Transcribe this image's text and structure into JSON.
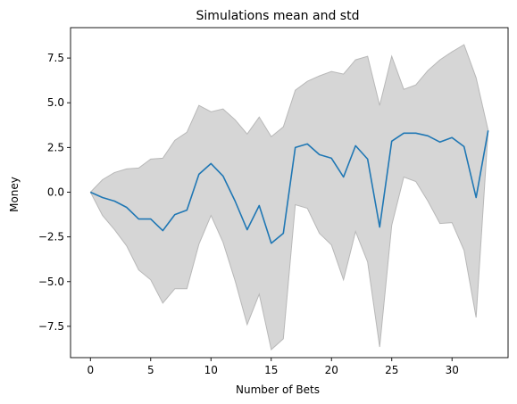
{
  "chart_data": {
    "type": "line",
    "title": "Simulations mean and std",
    "xlabel": "Number of Bets",
    "ylabel": "Money",
    "xlim": [
      -1.65,
      34.65
    ],
    "ylim": [
      -9.25,
      9.2
    ],
    "xticks": [
      0,
      5,
      10,
      15,
      20,
      25,
      30
    ],
    "yticks": [
      -7.5,
      -5.0,
      -2.5,
      0.0,
      2.5,
      5.0,
      7.5
    ],
    "ytick_labels": [
      "−7.5",
      "−5.0",
      "−2.5",
      "0.0",
      "2.5",
      "5.0",
      "7.5"
    ],
    "grid": false,
    "line_color": "#1f77b4",
    "band_color": "#d6d6d6",
    "band_edge_color": "#b8b8b8",
    "x": [
      0,
      1,
      2,
      3,
      4,
      5,
      6,
      7,
      8,
      9,
      10,
      11,
      12,
      13,
      14,
      15,
      16,
      17,
      18,
      19,
      20,
      21,
      22,
      23,
      24,
      25,
      26,
      27,
      28,
      29,
      30,
      31,
      32,
      33
    ],
    "series": [
      {
        "values": [
          0.0,
          -0.3,
          -0.5,
          -0.85,
          -1.5,
          -1.5,
          -2.15,
          -1.25,
          -1.0,
          1.0,
          1.6,
          0.9,
          -0.5,
          -2.1,
          -0.75,
          -2.85,
          -2.3,
          2.5,
          2.7,
          2.1,
          1.9,
          0.85,
          2.6,
          1.85,
          -1.95,
          2.85,
          3.3,
          3.3,
          3.15,
          2.8,
          3.05,
          2.55,
          -0.3,
          3.45
        ]
      }
    ],
    "band": {
      "upper": [
        0.0,
        0.7,
        1.1,
        1.3,
        1.35,
        1.85,
        1.9,
        2.9,
        3.35,
        4.85,
        4.5,
        4.65,
        4.05,
        3.25,
        4.2,
        3.1,
        3.65,
        5.7,
        6.2,
        6.5,
        6.75,
        6.6,
        7.4,
        7.6,
        4.85,
        7.6,
        5.75,
        6.0,
        6.8,
        7.4,
        7.85,
        8.25,
        6.4,
        3.45
      ],
      "lower": [
        0.0,
        -1.3,
        -2.1,
        -3.0,
        -4.35,
        -4.9,
        -6.2,
        -5.4,
        -5.4,
        -2.9,
        -1.3,
        -2.8,
        -4.95,
        -7.4,
        -5.7,
        -8.8,
        -8.2,
        -0.7,
        -0.9,
        -2.3,
        -2.95,
        -4.9,
        -2.2,
        -3.9,
        -8.65,
        -1.85,
        0.85,
        0.6,
        -0.5,
        -1.75,
        -1.7,
        -3.25,
        -7.0,
        3.45
      ]
    }
  }
}
